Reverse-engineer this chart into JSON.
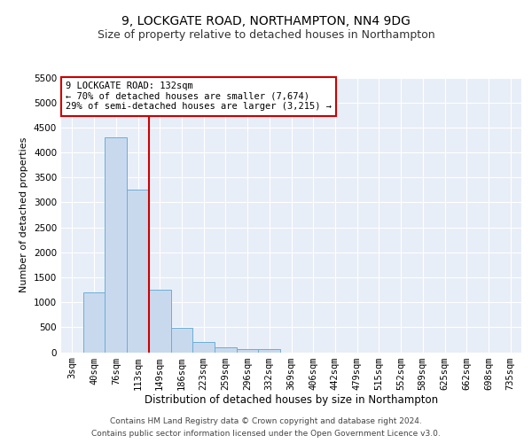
{
  "title1": "9, LOCKGATE ROAD, NORTHAMPTON, NN4 9DG",
  "title2": "Size of property relative to detached houses in Northampton",
  "xlabel": "Distribution of detached houses by size in Northampton",
  "ylabel": "Number of detached properties",
  "bar_labels": [
    "3sqm",
    "40sqm",
    "76sqm",
    "113sqm",
    "149sqm",
    "186sqm",
    "223sqm",
    "259sqm",
    "296sqm",
    "332sqm",
    "369sqm",
    "406sqm",
    "442sqm",
    "479sqm",
    "515sqm",
    "552sqm",
    "589sqm",
    "625sqm",
    "662sqm",
    "698sqm",
    "735sqm"
  ],
  "bar_values": [
    0,
    1200,
    4300,
    3250,
    1250,
    480,
    200,
    100,
    65,
    60,
    0,
    0,
    0,
    0,
    0,
    0,
    0,
    0,
    0,
    0,
    0
  ],
  "bar_color": "#c8d9ee",
  "bar_edge_color": "#6baed6",
  "vline_color": "#cc0000",
  "vline_x_index": 3,
  "annotation_text": "9 LOCKGATE ROAD: 132sqm\n← 70% of detached houses are smaller (7,674)\n29% of semi-detached houses are larger (3,215) →",
  "annotation_box_color": "#ffffff",
  "annotation_box_edge_color": "#cc0000",
  "ylim": [
    0,
    5500
  ],
  "yticks": [
    0,
    500,
    1000,
    1500,
    2000,
    2500,
    3000,
    3500,
    4000,
    4500,
    5000,
    5500
  ],
  "footer1": "Contains HM Land Registry data © Crown copyright and database right 2024.",
  "footer2": "Contains public sector information licensed under the Open Government Licence v3.0.",
  "bg_color": "#e8eef7",
  "grid_color": "#ffffff",
  "title1_fontsize": 10,
  "title2_fontsize": 9,
  "xlabel_fontsize": 8.5,
  "ylabel_fontsize": 8,
  "tick_fontsize": 7.5,
  "annotation_fontsize": 7.5,
  "footer_fontsize": 6.5
}
